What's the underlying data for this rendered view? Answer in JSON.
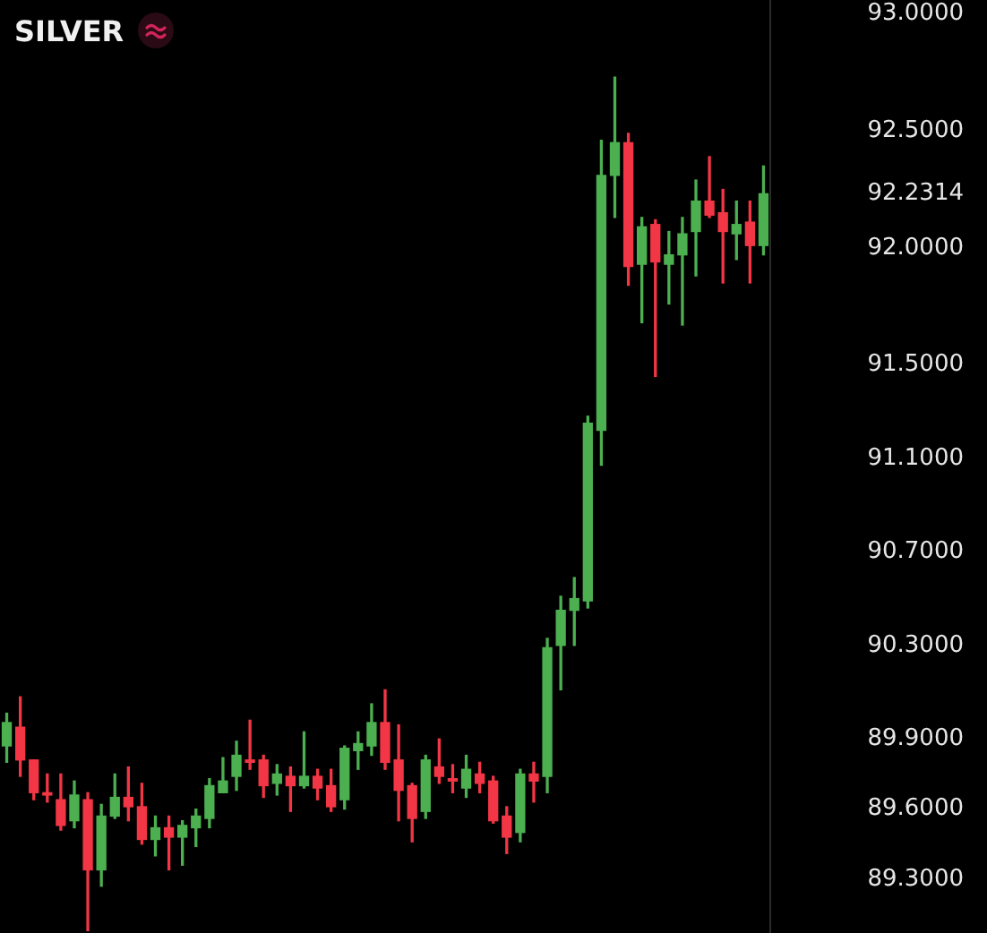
{
  "chart_data": {
    "type": "candlestick",
    "title": "SILVER",
    "categories": [
      null,
      null,
      null,
      null,
      null,
      null,
      null,
      null,
      null,
      null,
      null,
      null,
      null,
      null,
      null,
      null,
      null,
      null,
      null,
      null,
      null,
      null,
      null,
      null,
      null,
      null,
      null,
      null,
      null,
      null,
      null,
      null,
      null,
      null,
      null,
      null,
      null,
      null,
      null,
      null,
      null,
      null,
      null,
      null,
      null,
      null,
      null,
      null,
      null,
      null,
      null,
      null,
      null,
      null,
      null,
      null,
      null
    ],
    "ohlc": [
      [
        89.87,
        90.01,
        89.8,
        89.97
      ],
      [
        89.95,
        90.08,
        89.74,
        89.81
      ],
      [
        89.81,
        89.81,
        89.64,
        89.67
      ],
      [
        89.67,
        89.75,
        89.63,
        89.66
      ],
      [
        89.64,
        89.75,
        89.51,
        89.53
      ],
      [
        89.55,
        89.72,
        89.52,
        89.66
      ],
      [
        89.64,
        89.67,
        89.08,
        89.34
      ],
      [
        89.34,
        89.62,
        89.27,
        89.57
      ],
      [
        89.57,
        89.75,
        89.56,
        89.65
      ],
      [
        89.65,
        89.78,
        89.55,
        89.61
      ],
      [
        89.61,
        89.71,
        89.45,
        89.47
      ],
      [
        89.47,
        89.57,
        89.4,
        89.52
      ],
      [
        89.52,
        89.57,
        89.34,
        89.48
      ],
      [
        89.48,
        89.55,
        89.36,
        89.53
      ],
      [
        89.52,
        89.6,
        89.44,
        89.57
      ],
      [
        89.56,
        89.73,
        89.52,
        89.7
      ],
      [
        89.67,
        89.82,
        89.67,
        89.72
      ],
      [
        89.74,
        89.89,
        89.68,
        89.83
      ],
      [
        89.81,
        89.98,
        89.77,
        89.8
      ],
      [
        89.81,
        89.83,
        89.65,
        89.7
      ],
      [
        89.71,
        89.79,
        89.66,
        89.75
      ],
      [
        89.74,
        89.78,
        89.59,
        89.7
      ],
      [
        89.7,
        89.93,
        89.69,
        89.74
      ],
      [
        89.74,
        89.77,
        89.64,
        89.69
      ],
      [
        89.7,
        89.77,
        89.59,
        89.61
      ],
      [
        89.64,
        89.87,
        89.6,
        89.86
      ],
      [
        89.85,
        89.93,
        89.77,
        89.88
      ],
      [
        89.87,
        90.05,
        89.83,
        89.97
      ],
      [
        89.97,
        90.11,
        89.77,
        89.8
      ],
      [
        89.81,
        89.96,
        89.55,
        89.68
      ],
      [
        89.7,
        89.71,
        89.46,
        89.56
      ],
      [
        89.59,
        89.83,
        89.56,
        89.81
      ],
      [
        89.78,
        89.9,
        89.71,
        89.74
      ],
      [
        89.73,
        89.79,
        89.67,
        89.72
      ],
      [
        89.69,
        89.83,
        89.65,
        89.77
      ],
      [
        89.75,
        89.8,
        89.67,
        89.71
      ],
      [
        89.72,
        89.74,
        89.54,
        89.55
      ],
      [
        89.57,
        89.61,
        89.41,
        89.48
      ],
      [
        89.5,
        89.77,
        89.46,
        89.75
      ],
      [
        89.75,
        89.8,
        89.63,
        89.72
      ],
      [
        89.74,
        90.33,
        89.67,
        90.29
      ],
      [
        90.3,
        90.51,
        90.11,
        90.45
      ],
      [
        90.45,
        90.59,
        90.3,
        90.5
      ],
      [
        90.49,
        91.28,
        90.46,
        91.25
      ],
      [
        91.22,
        92.46,
        91.07,
        92.31
      ],
      [
        92.31,
        92.73,
        92.13,
        92.45
      ],
      [
        92.45,
        92.49,
        91.84,
        91.92
      ],
      [
        91.93,
        92.13,
        91.68,
        92.09
      ],
      [
        92.1,
        92.12,
        91.45,
        91.94
      ],
      [
        91.93,
        92.07,
        91.76,
        91.97
      ],
      [
        91.97,
        92.13,
        91.67,
        92.06
      ],
      [
        92.07,
        92.29,
        91.88,
        92.2
      ],
      [
        92.2,
        92.39,
        92.13,
        92.14
      ],
      [
        92.15,
        92.25,
        91.85,
        92.07
      ],
      [
        92.06,
        92.2,
        91.95,
        92.1
      ],
      [
        92.11,
        92.2,
        91.85,
        92.01
      ],
      [
        92.01,
        92.35,
        91.97,
        92.2314
      ]
    ],
    "colors": [
      "#4caf50",
      "#f23645",
      "#f23645",
      "#f23645",
      "#f23645",
      "#4caf50",
      "#f23645",
      "#4caf50",
      "#4caf50",
      "#f23645",
      "#f23645",
      "#4caf50",
      "#f23645",
      "#4caf50",
      "#4caf50",
      "#4caf50",
      "#4caf50",
      "#4caf50",
      "#f23645",
      "#f23645",
      "#4caf50",
      "#f23645",
      "#4caf50",
      "#f23645",
      "#f23645",
      "#4caf50",
      "#4caf50",
      "#4caf50",
      "#f23645",
      "#f23645",
      "#f23645",
      "#4caf50",
      "#f23645",
      "#f23645",
      "#4caf50",
      "#f23645",
      "#f23645",
      "#f23645",
      "#4caf50",
      "#f23645",
      "#4caf50",
      "#4caf50",
      "#4caf50",
      "#4caf50",
      "#4caf50",
      "#4caf50",
      "#f23645",
      "#4caf50",
      "#f23645",
      "#4caf50",
      "#4caf50",
      "#4caf50",
      "#f23645",
      "#f23645",
      "#4caf50",
      "#f23645",
      "#4caf50"
    ],
    "ylim": [
      89.07,
      93.06
    ],
    "yticks": [
      {
        "value": 93,
        "label": "93.0000"
      },
      {
        "value": 92.5,
        "label": "92.5000"
      },
      92.2314,
      {
        "value": 92,
        "label": "92.0000"
      },
      {
        "value": 91.5,
        "label": "91.5000"
      },
      {
        "value": 91.1,
        "label": "91.1000"
      },
      {
        "value": 90.7,
        "label": "90.7000"
      },
      {
        "value": 90.3,
        "label": "90.3000"
      },
      {
        "value": 89.9,
        "label": "89.9000"
      },
      {
        "value": 89.6,
        "label": "89.6000"
      },
      {
        "value": 89.3,
        "label": "89.3000"
      }
    ]
  }
}
